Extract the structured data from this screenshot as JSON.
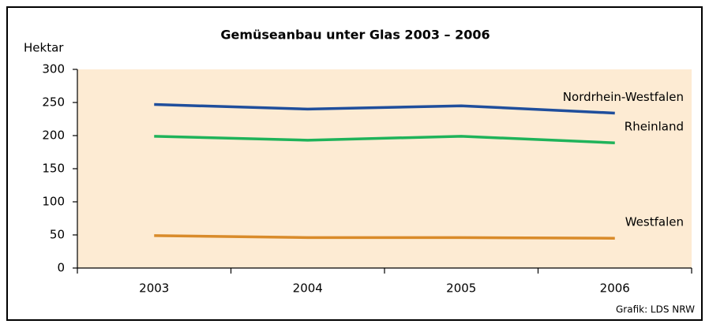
{
  "chart_data": {
    "type": "line",
    "title": "Gemüseanbau unter Glas 2003 – 2006",
    "y_label": "Hektar",
    "source": "Grafik: LDS NRW",
    "categories": [
      "2003",
      "2004",
      "2005",
      "2006"
    ],
    "series": [
      {
        "name": "Nordrhein-Westfalen",
        "color": "#1f4e9c",
        "values": [
          247,
          240,
          245,
          234
        ]
      },
      {
        "name": "Rheinland",
        "color": "#1fb35a",
        "values": [
          199,
          193,
          199,
          189
        ]
      },
      {
        "name": "Westfalen",
        "color": "#d98b2a",
        "values": [
          49,
          46,
          46,
          45
        ]
      }
    ],
    "ylim": [
      0,
      300
    ],
    "yticks": [
      0,
      50,
      100,
      150,
      200,
      250,
      300
    ],
    "grid": false
  }
}
